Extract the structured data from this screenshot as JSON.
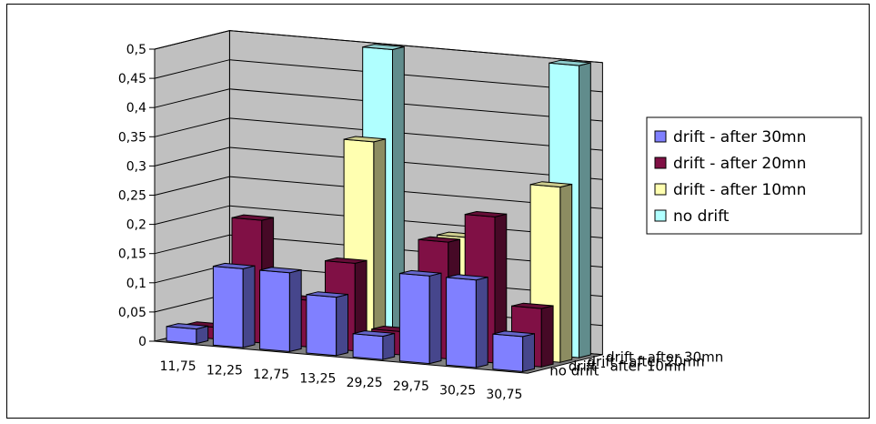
{
  "chart_data": {
    "type": "bar",
    "variant": "3d-clustered-depth",
    "categories": [
      "11,75",
      "12,25",
      "12,75",
      "13,25",
      "29,25",
      "29,75",
      "30,25",
      "30,75"
    ],
    "depth_labels": [
      "no drift",
      "drift - after 10mn",
      "drift - after 20mn",
      "drift - after 30mn"
    ],
    "yticks": [
      "0",
      "0,05",
      "0,1",
      "0,15",
      "0,2",
      "0,25",
      "0,3",
      "0,35",
      "0,4",
      "0,45",
      "0,5"
    ],
    "ylim": [
      0,
      0.5
    ],
    "grid": true,
    "legend_position": "right",
    "title": "",
    "xlabel": "",
    "ylabel": "",
    "series": [
      {
        "name": "drift - after 30mn",
        "color": "#8080ff",
        "values": [
          0.025,
          0.135,
          0.135,
          0.1,
          0.04,
          0.15,
          0.15,
          0.06
        ]
      },
      {
        "name": "drift - after 20mn",
        "color": "#801045",
        "values": [
          0.02,
          0.21,
          0.08,
          0.15,
          0.04,
          0.2,
          0.25,
          0.1
        ]
      },
      {
        "name": "drift - after 10mn",
        "color": "#ffffb0",
        "values": [
          0.0,
          0.05,
          0.0,
          0.35,
          0.0,
          0.2,
          0.0,
          0.3
        ]
      },
      {
        "name": "no drift",
        "color": "#b0ffff",
        "values": [
          0.0,
          0.0,
          0.0,
          0.5,
          0.0,
          0.0,
          0.0,
          0.5
        ]
      }
    ]
  }
}
